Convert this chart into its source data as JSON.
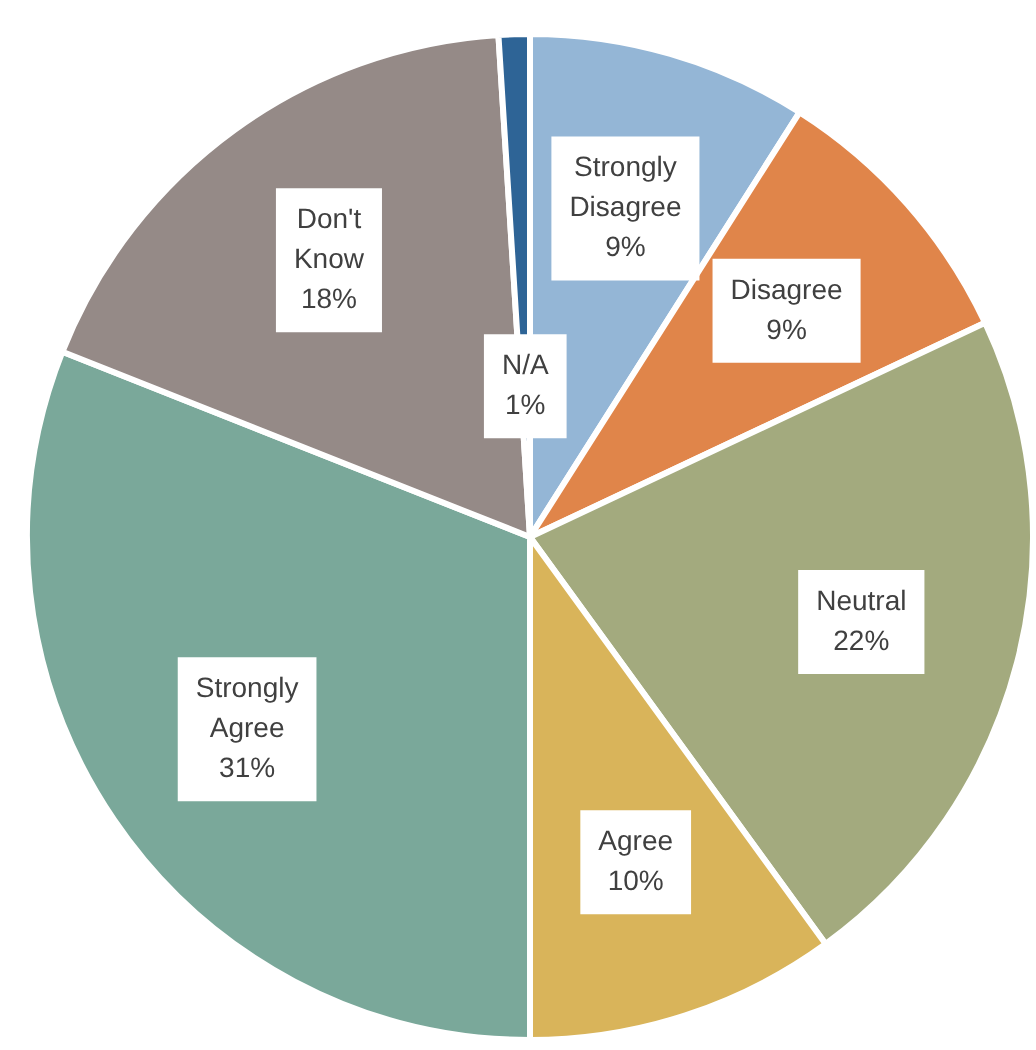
{
  "chart_data": {
    "type": "pie",
    "categories": [
      "Strongly Disagree",
      "Disagree",
      "Neutral",
      "Agree",
      "Strongly Agree",
      "Don't Know",
      "N/A"
    ],
    "values": [
      9,
      9,
      22,
      10,
      31,
      18,
      1
    ],
    "colors": [
      "#94b6d6",
      "#e0854a",
      "#a3aa7e",
      "#d9b45a",
      "#7aa89a",
      "#958a87",
      "#2e6496"
    ],
    "value_labels": [
      "9%",
      "9%",
      "22%",
      "10%",
      "31%",
      "18%",
      "1%"
    ],
    "legend": false
  }
}
